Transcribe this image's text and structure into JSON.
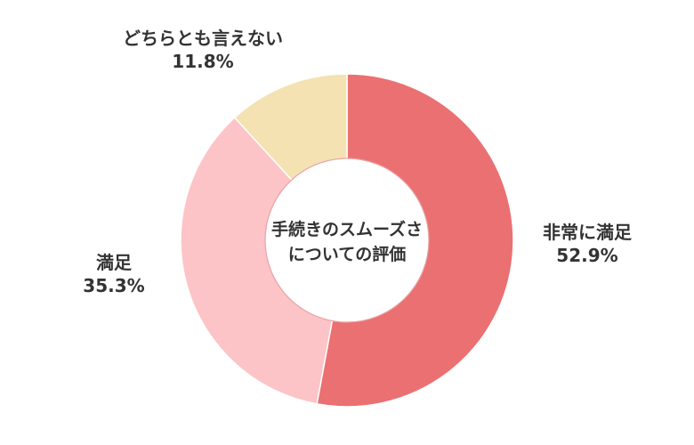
{
  "chart_data": {
    "type": "pie",
    "donut": true,
    "center_label_lines": [
      "手続きのスムーズさ",
      "についての評価"
    ],
    "slices": [
      {
        "name": "非常に満足",
        "value": 52.9,
        "value_label": "52.9%",
        "color": "#ea7072"
      },
      {
        "name": "満足",
        "value": 35.3,
        "value_label": "35.3%",
        "color": "#fcc4c6"
      },
      {
        "name": "どちらとも言えない",
        "value": 11.8,
        "value_label": "11.8%",
        "color": "#f4e2b3"
      }
    ],
    "start_angle_deg": 0,
    "direction": "clockwise",
    "legend": "none"
  }
}
